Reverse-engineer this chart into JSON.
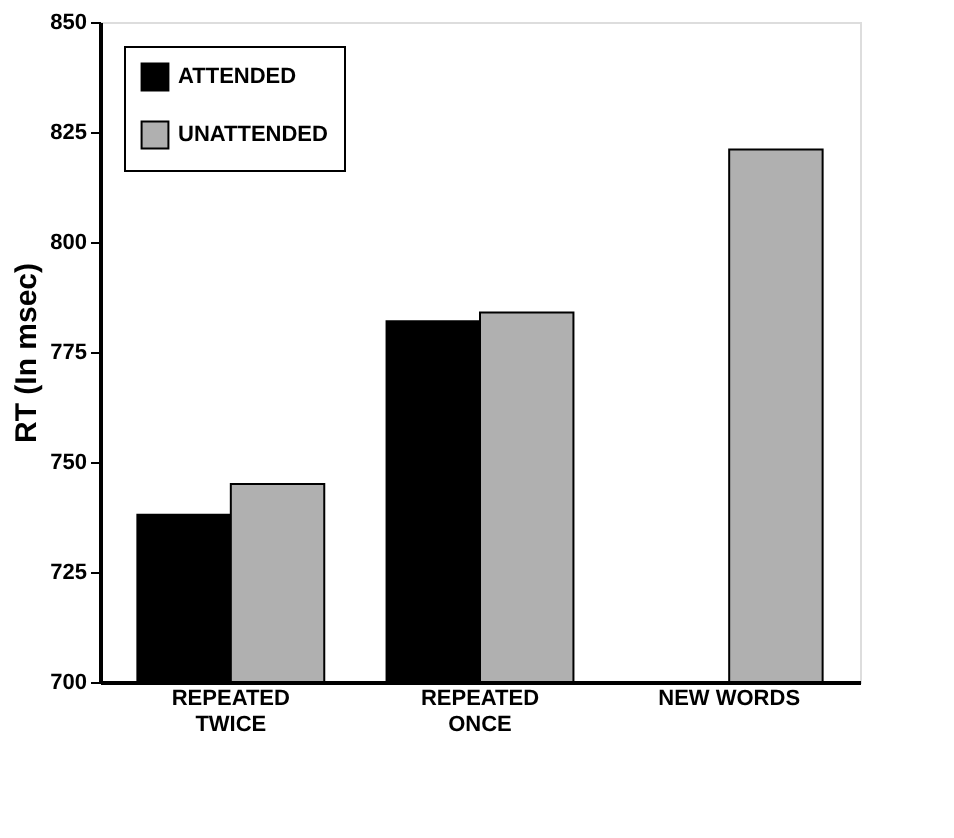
{
  "chart_data": {
    "type": "bar",
    "ylabel": "RT (In msec)",
    "categories": [
      "REPEATED\nTWICE",
      "REPEATED\nONCE",
      "NEW WORDS"
    ],
    "series": [
      {
        "name": "ATTENDED",
        "color": "#000000",
        "values": [
          738,
          782,
          null
        ]
      },
      {
        "name": "UNATTENDED",
        "color": "#b0b0b0",
        "values": [
          745,
          784,
          821
        ]
      }
    ],
    "ylim": [
      700,
      850
    ],
    "yticks": [
      700,
      725,
      750,
      775,
      800,
      825,
      850
    ],
    "grid": false,
    "legend": "top left"
  }
}
